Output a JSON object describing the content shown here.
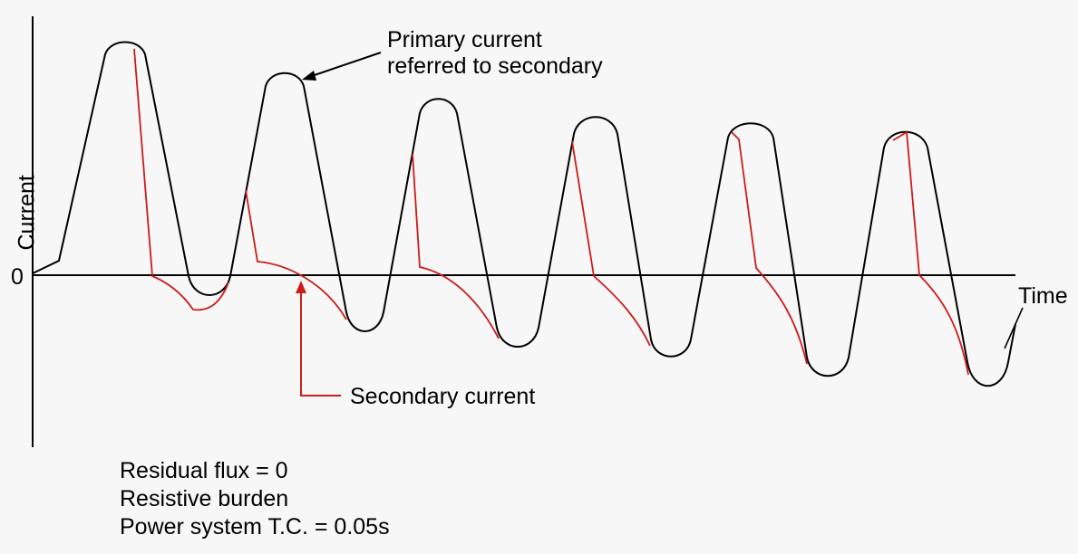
{
  "axes": {
    "y_label": "Current",
    "x_label": "Time",
    "zero_tick": "0"
  },
  "annotations": {
    "primary_line1": "Primary current",
    "primary_line2": "referred to secondary",
    "secondary": "Secondary current"
  },
  "notes": [
    "Residual flux = 0",
    "Resistive burden",
    "Power system T.C. = 0.05s"
  ],
  "colors": {
    "primary": "#000000",
    "secondary": "#cc1b1b",
    "axis": "#000000",
    "background": "#f7f7f7"
  }
}
